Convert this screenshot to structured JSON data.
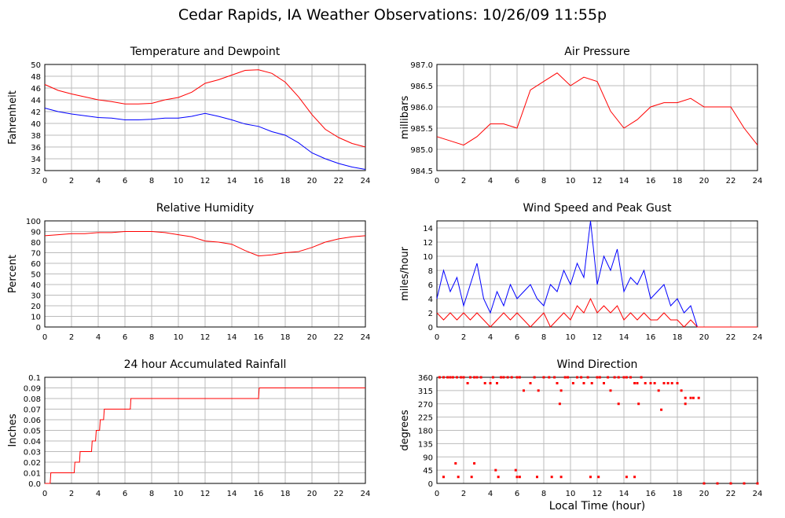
{
  "title": "Cedar Rapids, IA Weather Observations: 10/26/09 11:55p",
  "xlabel": "Local Time (hour)",
  "chart_data": [
    {
      "type": "line",
      "title": "Temperature and Dewpoint",
      "ylabel": "Fahrenheit",
      "xlim": [
        0,
        24
      ],
      "ylim": [
        32,
        50
      ],
      "x_ticks": [
        "0",
        "2",
        "4",
        "6",
        "8",
        "10",
        "12",
        "14",
        "16",
        "18",
        "20",
        "22",
        "24"
      ],
      "y_ticks": [
        "32",
        "34",
        "36",
        "38",
        "40",
        "42",
        "44",
        "46",
        "48",
        "50"
      ],
      "x": [
        0,
        1,
        2,
        3,
        4,
        5,
        6,
        7,
        8,
        9,
        10,
        11,
        12,
        13,
        14,
        15,
        16,
        17,
        18,
        19,
        20,
        21,
        22,
        23,
        24
      ],
      "series": [
        {
          "color": "#ff0000",
          "values": [
            46.6,
            45.6,
            45.0,
            44.5,
            44.0,
            43.7,
            43.3,
            43.3,
            43.4,
            44.0,
            44.4,
            45.3,
            46.8,
            47.4,
            48.2,
            49.0,
            49.1,
            48.5,
            47.0,
            44.5,
            41.5,
            39.0,
            37.6,
            36.6,
            36.0
          ]
        },
        {
          "color": "#0000ff",
          "values": [
            42.6,
            42.0,
            41.6,
            41.3,
            41.0,
            40.9,
            40.6,
            40.6,
            40.7,
            40.9,
            40.9,
            41.2,
            41.7,
            41.2,
            40.6,
            39.9,
            39.5,
            38.6,
            38.0,
            36.7,
            35.0,
            34.0,
            33.2,
            32.6,
            32.2
          ]
        }
      ]
    },
    {
      "type": "line",
      "title": "Air Pressure",
      "ylabel": "millibars",
      "xlim": [
        0,
        24
      ],
      "ylim": [
        984.5,
        987.0
      ],
      "x_ticks": [
        "0",
        "2",
        "4",
        "6",
        "8",
        "10",
        "12",
        "14",
        "16",
        "18",
        "20",
        "22",
        "24"
      ],
      "y_ticks": [
        "984.5",
        "985.0",
        "985.5",
        "986.0",
        "986.5",
        "987.0"
      ],
      "x": [
        0,
        1,
        2,
        3,
        4,
        5,
        6,
        7,
        8,
        9,
        10,
        11,
        12,
        13,
        14,
        15,
        16,
        17,
        18,
        19,
        20,
        21,
        22,
        23,
        24
      ],
      "series": [
        {
          "color": "#ff0000",
          "values": [
            985.3,
            985.2,
            985.1,
            985.3,
            985.6,
            985.6,
            985.5,
            986.4,
            986.6,
            986.8,
            986.5,
            986.7,
            986.6,
            985.9,
            985.5,
            985.7,
            986.0,
            986.1,
            986.1,
            986.2,
            986.0,
            986.0,
            986.0,
            985.5,
            985.1
          ]
        }
      ]
    },
    {
      "type": "line",
      "title": "Relative Humidity",
      "ylabel": "Percent",
      "xlim": [
        0,
        24
      ],
      "ylim": [
        0,
        100
      ],
      "x_ticks": [
        "0",
        "2",
        "4",
        "6",
        "8",
        "10",
        "12",
        "14",
        "16",
        "18",
        "20",
        "22",
        "24"
      ],
      "y_ticks": [
        "0",
        "10",
        "20",
        "30",
        "40",
        "50",
        "60",
        "70",
        "80",
        "90",
        "100"
      ],
      "x": [
        0,
        1,
        2,
        3,
        4,
        5,
        6,
        7,
        8,
        9,
        10,
        11,
        12,
        13,
        14,
        15,
        16,
        17,
        18,
        19,
        20,
        21,
        22,
        23,
        24
      ],
      "series": [
        {
          "color": "#ff0000",
          "values": [
            86,
            87,
            88,
            88,
            89,
            89,
            90,
            90,
            90,
            89,
            87,
            85,
            81,
            80,
            78,
            72,
            67,
            68,
            70,
            71,
            75,
            80,
            83,
            85,
            86
          ]
        }
      ]
    },
    {
      "type": "line",
      "title": "Wind Speed and Peak Gust",
      "ylabel": "miles/hour",
      "xlim": [
        0,
        24
      ],
      "ylim": [
        0,
        15
      ],
      "x_ticks": [
        "0",
        "2",
        "4",
        "6",
        "8",
        "10",
        "12",
        "14",
        "16",
        "18",
        "20",
        "22",
        "24"
      ],
      "y_ticks": [
        "0",
        "2",
        "4",
        "6",
        "8",
        "10",
        "12",
        "14"
      ],
      "x": [
        0,
        0.5,
        1,
        1.5,
        2,
        2.5,
        3,
        3.5,
        4,
        4.5,
        5,
        5.5,
        6,
        6.5,
        7,
        7.5,
        8,
        8.5,
        9,
        9.5,
        10,
        10.5,
        11,
        11.5,
        12,
        12.5,
        13,
        13.5,
        14,
        14.5,
        15,
        15.5,
        16,
        16.5,
        17,
        17.5,
        18,
        18.5,
        19,
        19.5,
        20,
        21,
        22,
        23,
        24
      ],
      "series": [
        {
          "color": "#0000ff",
          "values": [
            4,
            8,
            5,
            7,
            3,
            6,
            9,
            4,
            2,
            5,
            3,
            6,
            4,
            5,
            6,
            4,
            3,
            6,
            5,
            8,
            6,
            9,
            7,
            15,
            6,
            10,
            8,
            11,
            5,
            7,
            6,
            8,
            4,
            5,
            6,
            3,
            4,
            2,
            3,
            0,
            0,
            0,
            0,
            0,
            0
          ]
        },
        {
          "color": "#ff0000",
          "values": [
            2,
            1,
            2,
            1,
            2,
            1,
            2,
            1,
            0,
            1,
            2,
            1,
            2,
            1,
            0,
            1,
            2,
            0,
            1,
            2,
            1,
            3,
            2,
            4,
            2,
            3,
            2,
            3,
            1,
            2,
            1,
            2,
            1,
            1,
            2,
            1,
            1,
            0,
            1,
            0,
            0,
            0,
            0,
            0,
            0
          ]
        }
      ]
    },
    {
      "type": "line",
      "title": "24 hour Accumulated Rainfall",
      "ylabel": "Inches",
      "xlim": [
        0,
        24
      ],
      "ylim": [
        0,
        0.1
      ],
      "x_ticks": [
        "0",
        "2",
        "4",
        "6",
        "8",
        "10",
        "12",
        "14",
        "16",
        "18",
        "20",
        "22",
        "24"
      ],
      "y_ticks": [
        "0.0",
        "0.01",
        "0.02",
        "0.03",
        "0.04",
        "0.05",
        "0.06",
        "0.07",
        "0.08",
        "0.09",
        "0.1"
      ],
      "x": [
        0,
        0.4,
        0.45,
        2.2,
        2.25,
        2.6,
        2.65,
        3.5,
        3.55,
        3.8,
        3.85,
        4.1,
        4.15,
        4.4,
        4.45,
        6.4,
        6.45,
        16.0,
        16.05,
        24
      ],
      "series": [
        {
          "color": "#ff0000",
          "values": [
            0,
            0,
            0.01,
            0.01,
            0.02,
            0.02,
            0.03,
            0.03,
            0.04,
            0.04,
            0.05,
            0.05,
            0.06,
            0.06,
            0.07,
            0.07,
            0.08,
            0.08,
            0.09,
            0.09
          ]
        }
      ]
    },
    {
      "type": "scatter",
      "title": "Wind Direction",
      "ylabel": "degrees",
      "xlim": [
        0,
        24
      ],
      "ylim": [
        0,
        360
      ],
      "x_ticks": [
        "0",
        "2",
        "4",
        "6",
        "8",
        "10",
        "12",
        "14",
        "16",
        "18",
        "20",
        "22",
        "24"
      ],
      "y_ticks": [
        "0",
        "45",
        "90",
        "135",
        "180",
        "225",
        "270",
        "315",
        "360"
      ],
      "series": [
        {
          "color": "#ff0000",
          "x": [
            0.2,
            0.5,
            0.8,
            1.0,
            1.2,
            1.5,
            1.8,
            2.0,
            2.3,
            2.5,
            2.8,
            3.0,
            3.3,
            3.6,
            4.0,
            4.2,
            4.5,
            4.8,
            5.0,
            5.3,
            5.6,
            6.0,
            6.2,
            6.5,
            7.0,
            7.3,
            7.6,
            8.0,
            8.4,
            8.8,
            9.0,
            9.3,
            9.6,
            9.8,
            10.2,
            10.5,
            10.8,
            11.0,
            11.3,
            11.6,
            12.0,
            12.2,
            12.5,
            12.8,
            13.0,
            13.3,
            13.6,
            14.0,
            14.2,
            14.5,
            14.8,
            15.0,
            15.3,
            15.6,
            16.0,
            16.3,
            16.6,
            17.0,
            17.3,
            17.6,
            18.0,
            18.3,
            18.6,
            19.0,
            19.2,
            19.6,
            20.0,
            21.0,
            22.0,
            23.0,
            24.0,
            1.4,
            2.8,
            4.4,
            5.9,
            6.2,
            0.5,
            1.6,
            2.6,
            4.6,
            6.0,
            7.5,
            8.6,
            9.3,
            11.5,
            12.1,
            14.2,
            14.8,
            9.2,
            13.6,
            15.1,
            16.8,
            18.6
          ],
          "values": [
            360,
            360,
            360,
            360,
            360,
            360,
            360,
            360,
            340,
            360,
            360,
            360,
            360,
            340,
            340,
            360,
            340,
            360,
            360,
            360,
            360,
            360,
            360,
            315,
            340,
            360,
            315,
            360,
            360,
            360,
            340,
            315,
            360,
            360,
            340,
            360,
            360,
            340,
            360,
            340,
            360,
            360,
            340,
            360,
            315,
            360,
            360,
            360,
            360,
            360,
            340,
            340,
            360,
            340,
            340,
            340,
            315,
            340,
            340,
            340,
            340,
            315,
            290,
            290,
            290,
            290,
            0,
            0,
            0,
            0,
            0,
            68,
            68,
            45,
            45,
            22,
            22,
            22,
            22,
            22,
            22,
            22,
            22,
            22,
            22,
            22,
            22,
            22,
            270,
            270,
            270,
            250,
            270
          ]
        }
      ]
    }
  ]
}
